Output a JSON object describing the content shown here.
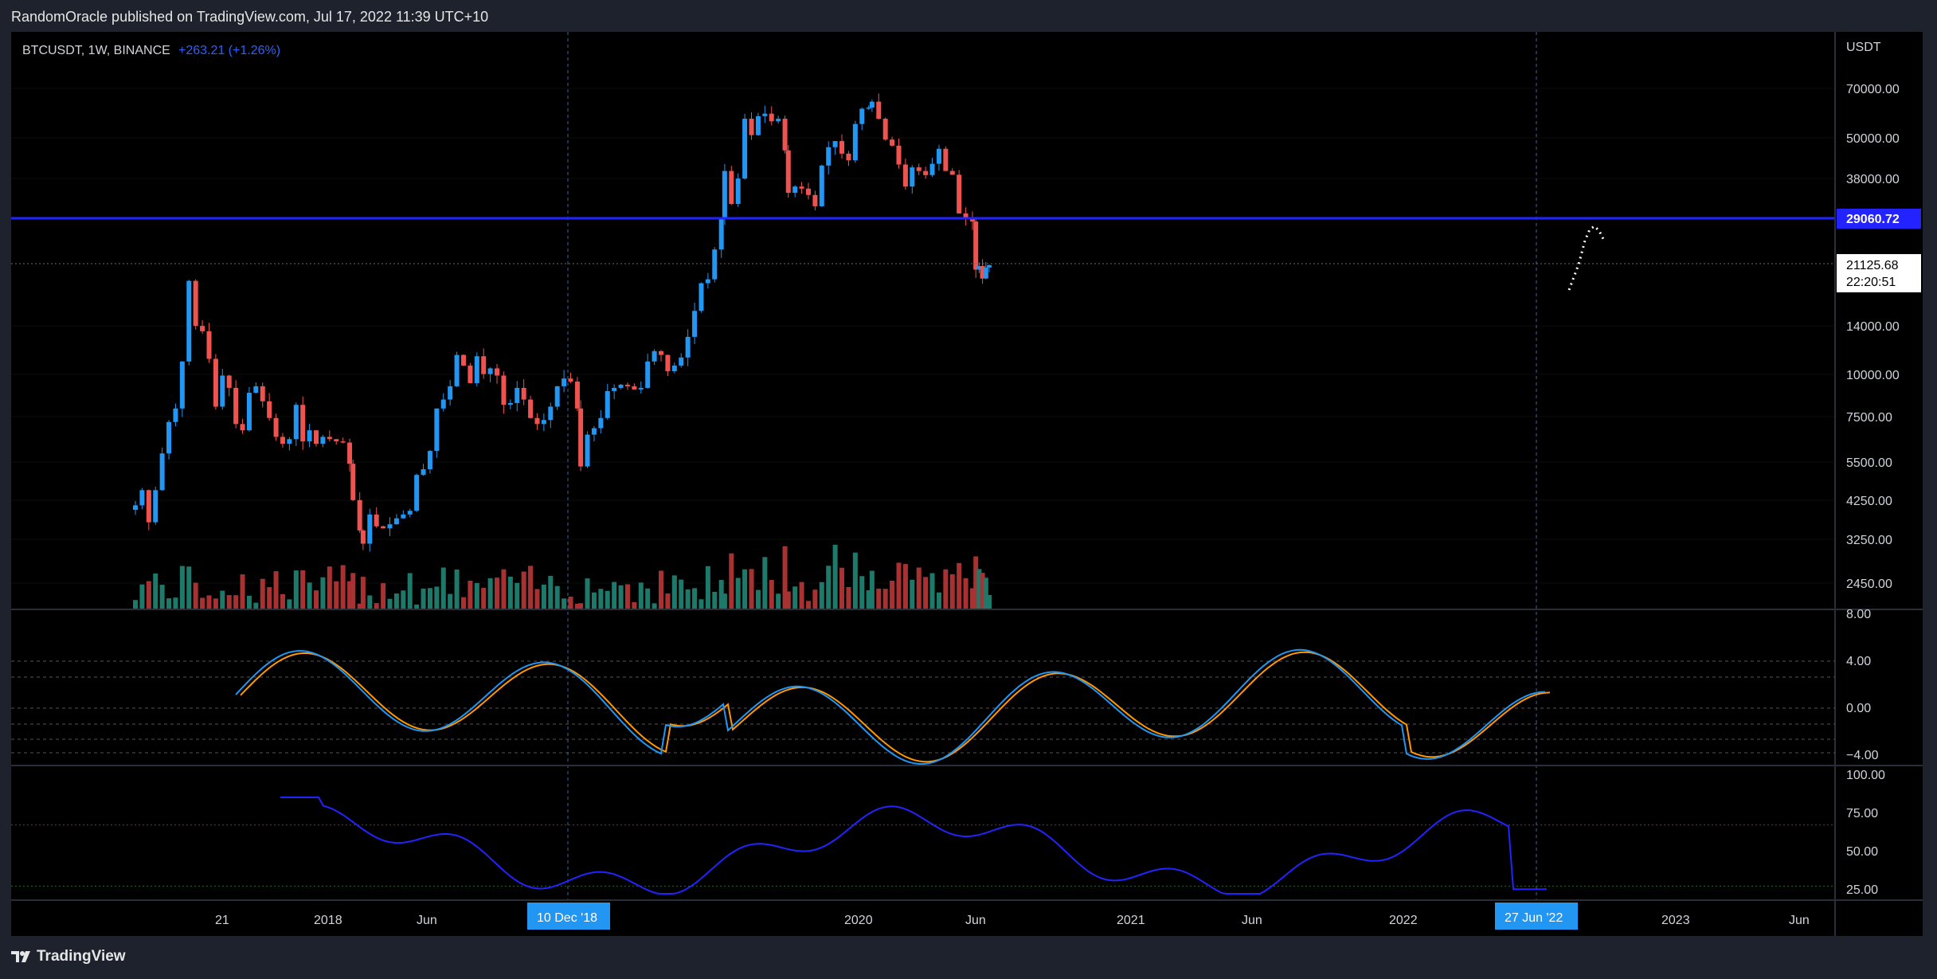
{
  "header": {
    "publish_line": "RandomOracle published on TradingView.com, Jul 17, 2022 11:39 UTC+10"
  },
  "footer": {
    "brand": "TradingView"
  },
  "symbol": {
    "name": "BTCUSDT, 1W, BINANCE",
    "change": "+263.21 (+1.26%)"
  },
  "price_scale": {
    "currency": "USDT",
    "ticks": [
      "70000.00",
      "50000.00",
      "38000.00",
      "14000.00",
      "10000.00",
      "7500.00",
      "5500.00",
      "4250.00",
      "3250.00",
      "2450.00"
    ],
    "level_line": "29060.72",
    "last_price": "21125.68",
    "countdown": "22:20:51"
  },
  "osc_scale": {
    "ticks": [
      "8.00",
      "4.00",
      "0.00",
      "−4.00"
    ]
  },
  "rsi_scale": {
    "ticks": [
      "100.00",
      "75.00",
      "50.00",
      "25.00"
    ]
  },
  "time_axis": {
    "labels": [
      "21",
      "2018",
      "Jun",
      "2020",
      "Jun",
      "2021",
      "Jun",
      "2022",
      "2023",
      "Jun"
    ],
    "cursor_left": "10 Dec '18",
    "cursor_right": "27 Jun '22"
  },
  "colors": {
    "up": "#2196f3",
    "down": "#ef5350",
    "vol_up": "#1d7a6a",
    "vol_down": "#a83232",
    "level": "#2323ff",
    "osc_fast": "#2196f3",
    "osc_slow": "#ff9800",
    "rsi": "#2323ff",
    "background": "#000000"
  },
  "chart_data": {
    "type": "candlestick",
    "symbol": "BTCUSDT",
    "interval": "1W",
    "exchange": "BINANCE",
    "y_scale": "log",
    "horizontal_level": 29060.72,
    "last_price": 21125.68,
    "weekly_close": [
      [
        "2017-08-21",
        4150
      ],
      [
        "2017-09-04",
        4600
      ],
      [
        "2017-09-18",
        3700
      ],
      [
        "2017-10-02",
        4600
      ],
      [
        "2017-10-16",
        5900
      ],
      [
        "2017-10-30",
        7300
      ],
      [
        "2017-11-13",
        8000
      ],
      [
        "2017-11-27",
        11000
      ],
      [
        "2017-12-11",
        19000
      ],
      [
        "2017-12-25",
        14000
      ],
      [
        "2018-01-08",
        13500
      ],
      [
        "2018-01-22",
        11200
      ],
      [
        "2018-02-05",
        8100
      ],
      [
        "2018-02-19",
        10000
      ],
      [
        "2018-03-05",
        9200
      ],
      [
        "2018-03-19",
        7200
      ],
      [
        "2018-04-02",
        6900
      ],
      [
        "2018-04-16",
        8900
      ],
      [
        "2018-04-30",
        9300
      ],
      [
        "2018-05-14",
        8400
      ],
      [
        "2018-05-28",
        7500
      ],
      [
        "2018-06-11",
        6600
      ],
      [
        "2018-06-25",
        6300
      ],
      [
        "2018-07-09",
        6500
      ],
      [
        "2018-07-23",
        8200
      ],
      [
        "2018-08-06",
        6400
      ],
      [
        "2018-08-20",
        6900
      ],
      [
        "2018-09-03",
        6300
      ],
      [
        "2018-09-17",
        6600
      ],
      [
        "2018-10-01",
        6500
      ],
      [
        "2018-10-15",
        6400
      ],
      [
        "2018-10-29",
        6350
      ],
      [
        "2018-11-12",
        5500
      ],
      [
        "2018-11-19",
        4300
      ],
      [
        "2018-12-03",
        3500
      ],
      [
        "2018-12-10",
        3200
      ],
      [
        "2018-12-24",
        3900
      ],
      [
        "2019-01-07",
        3600
      ],
      [
        "2019-01-21",
        3550
      ],
      [
        "2019-02-04",
        3650
      ],
      [
        "2019-02-18",
        3800
      ],
      [
        "2019-03-04",
        3900
      ],
      [
        "2019-03-18",
        4000
      ],
      [
        "2019-04-01",
        5100
      ],
      [
        "2019-04-15",
        5300
      ],
      [
        "2019-04-29",
        6000
      ],
      [
        "2019-05-13",
        8000
      ],
      [
        "2019-05-27",
        8500
      ],
      [
        "2019-06-10",
        9300
      ],
      [
        "2019-06-24",
        11500
      ],
      [
        "2019-07-08",
        10700
      ],
      [
        "2019-07-22",
        9500
      ],
      [
        "2019-08-05",
        11400
      ],
      [
        "2019-08-19",
        10100
      ],
      [
        "2019-09-02",
        10500
      ],
      [
        "2019-09-16",
        10000
      ],
      [
        "2019-09-30",
        8200
      ],
      [
        "2019-10-14",
        8300
      ],
      [
        "2019-10-28",
        9200
      ],
      [
        "2019-11-11",
        8500
      ],
      [
        "2019-11-25",
        7500
      ],
      [
        "2019-12-09",
        7200
      ],
      [
        "2019-12-23",
        7400
      ],
      [
        "2020-01-06",
        8100
      ],
      [
        "2020-01-20",
        9300
      ],
      [
        "2020-02-03",
        9800
      ],
      [
        "2020-02-17",
        9600
      ],
      [
        "2020-03-02",
        8000
      ],
      [
        "2020-03-09",
        5400
      ],
      [
        "2020-03-23",
        6700
      ],
      [
        "2020-04-06",
        7000
      ],
      [
        "2020-04-20",
        7500
      ],
      [
        "2020-05-04",
        9000
      ],
      [
        "2020-05-18",
        9200
      ],
      [
        "2020-06-01",
        9400
      ],
      [
        "2020-06-15",
        9300
      ],
      [
        "2020-06-29",
        9100
      ],
      [
        "2020-07-13",
        9200
      ],
      [
        "2020-07-27",
        11000
      ],
      [
        "2020-08-10",
        11800
      ],
      [
        "2020-08-24",
        11500
      ],
      [
        "2020-09-07",
        10300
      ],
      [
        "2020-09-21",
        10700
      ],
      [
        "2020-10-05",
        11300
      ],
      [
        "2020-10-19",
        13000
      ],
      [
        "2020-11-02",
        15500
      ],
      [
        "2020-11-16",
        18700
      ],
      [
        "2020-11-30",
        19200
      ],
      [
        "2020-12-14",
        23500
      ],
      [
        "2020-12-28",
        29000
      ],
      [
        "2021-01-04",
        40000
      ],
      [
        "2021-01-18",
        32000
      ],
      [
        "2021-02-01",
        38000
      ],
      [
        "2021-02-15",
        57000
      ],
      [
        "2021-03-01",
        51000
      ],
      [
        "2021-03-15",
        58000
      ],
      [
        "2021-03-29",
        59000
      ],
      [
        "2021-04-12",
        56000
      ],
      [
        "2021-04-26",
        57000
      ],
      [
        "2021-05-10",
        46000
      ],
      [
        "2021-05-17",
        34500
      ],
      [
        "2021-05-31",
        36000
      ],
      [
        "2021-06-14",
        35500
      ],
      [
        "2021-06-28",
        34000
      ],
      [
        "2021-07-12",
        31500
      ],
      [
        "2021-07-26",
        41500
      ],
      [
        "2021-08-09",
        47000
      ],
      [
        "2021-08-23",
        49000
      ],
      [
        "2021-09-06",
        45000
      ],
      [
        "2021-09-20",
        43000
      ],
      [
        "2021-10-04",
        55000
      ],
      [
        "2021-10-18",
        61000
      ],
      [
        "2021-11-01",
        61500
      ],
      [
        "2021-11-08",
        64000
      ],
      [
        "2021-11-22",
        57000
      ],
      [
        "2021-12-06",
        49500
      ],
      [
        "2021-12-20",
        47500
      ],
      [
        "2022-01-03",
        41800
      ],
      [
        "2022-01-17",
        36000
      ],
      [
        "2022-01-31",
        41000
      ],
      [
        "2022-02-14",
        40000
      ],
      [
        "2022-02-28",
        38900
      ],
      [
        "2022-03-14",
        42000
      ],
      [
        "2022-03-28",
        46500
      ],
      [
        "2022-04-11",
        40000
      ],
      [
        "2022-04-25",
        39000
      ],
      [
        "2022-05-09",
        30000
      ],
      [
        "2022-05-23",
        29000
      ],
      [
        "2022-06-06",
        28400
      ],
      [
        "2022-06-13",
        20500
      ],
      [
        "2022-06-20",
        21000
      ],
      [
        "2022-06-27",
        19300
      ],
      [
        "2022-07-04",
        20800
      ],
      [
        "2022-07-11",
        21125.68
      ]
    ],
    "oscillator": {
      "ticks": [
        8,
        4,
        0,
        -4
      ],
      "reference_lines": [
        4,
        2,
        0,
        -2,
        -4
      ],
      "series_colors": [
        "blue",
        "orange"
      ]
    },
    "rsi": {
      "ticks": [
        100,
        75,
        50,
        25
      ],
      "overbought": 70,
      "oversold": 30
    }
  }
}
